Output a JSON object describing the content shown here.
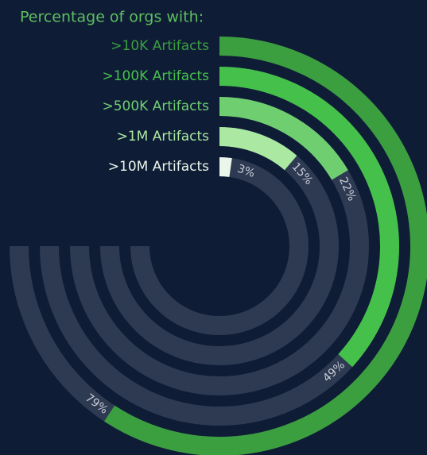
{
  "chart_data": {
    "type": "radial_bar",
    "title": "Percentage of orgs with:",
    "categories": [
      ">10K Artifacts",
      ">100K Artifacts",
      ">500K Artifacts",
      ">1M Artifacts",
      ">10M Artifacts"
    ],
    "values": [
      79,
      49,
      22,
      15,
      3
    ],
    "value_labels": [
      "79%",
      "49%",
      "22%",
      "15%",
      "3%"
    ],
    "colors": [
      "#3b9f40",
      "#45c14b",
      "#6fcf70",
      "#abe9a2",
      "#eaf6ea"
    ],
    "ylim": [
      0,
      100
    ]
  }
}
